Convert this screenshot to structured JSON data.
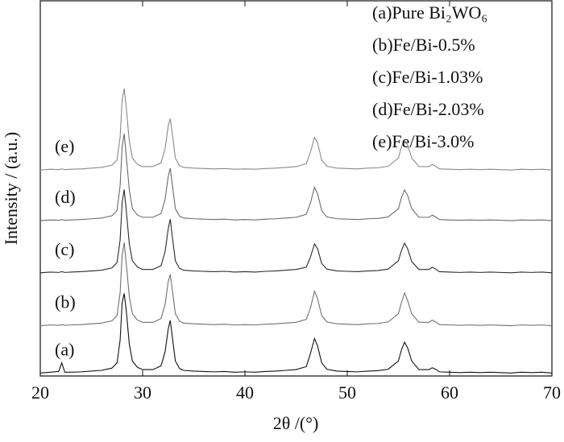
{
  "chart_data": {
    "type": "line",
    "x_label": "2θ /(°)",
    "y_label": "Intensity / (a.u.)",
    "xlim": [
      20,
      70
    ],
    "xticks": [
      20,
      30,
      40,
      50,
      60,
      70
    ],
    "ylim": [
      0,
      100
    ],
    "grid": false,
    "legend": "upper right",
    "x": [
      20,
      21,
      21.8,
      22.1,
      22.4,
      23,
      24,
      25,
      26,
      27,
      27.5,
      27.8,
      28.0,
      28.2,
      28.4,
      28.7,
      29,
      29.5,
      30,
      31,
      31.8,
      32.2,
      32.5,
      32.7,
      32.9,
      33.2,
      33.6,
      34,
      35,
      36,
      37,
      38,
      39,
      40,
      41,
      42,
      43,
      44,
      45,
      46,
      46.4,
      46.8,
      47.1,
      47.5,
      48,
      49,
      50,
      51,
      52,
      53,
      54,
      55,
      55.3,
      55.6,
      55.9,
      56.3,
      57,
      58,
      58.3,
      58.7,
      59,
      60,
      61,
      62,
      63,
      64,
      65,
      66,
      67,
      68,
      69,
      70
    ],
    "series": [
      {
        "name": "(a)Pure Bi₂WO₆",
        "label": "(a)",
        "color": "#111111",
        "values": [
          0.8,
          1.0,
          1.2,
          3.5,
          1.0,
          1.0,
          1.1,
          1.3,
          1.5,
          2.1,
          3.5,
          9.5,
          19.5,
          22,
          17.5,
          8.5,
          4,
          2.3,
          1.7,
          1.7,
          2.7,
          6.5,
          12.5,
          14.8,
          10.5,
          4,
          2,
          1.5,
          1.3,
          1.2,
          1.1,
          1.2,
          1,
          1.1,
          1,
          1.2,
          1.3,
          1.5,
          1.7,
          2.5,
          6,
          10,
          8,
          3.5,
          1.8,
          1.3,
          1.2,
          1.1,
          1.3,
          1.4,
          1.8,
          4,
          7,
          9,
          7.5,
          4,
          1.7,
          1.7,
          2.2,
          1.7,
          1.1,
          1,
          0.9,
          1,
          0.9,
          1,
          0.9,
          0.8,
          1,
          0.9,
          1,
          0.8
        ]
      },
      {
        "name": "(b)Fe/Bi-0.5%",
        "label": "(b)",
        "color": "#707070",
        "values": [
          13.4,
          13.6,
          13.5,
          13.7,
          13.5,
          13.6,
          13.7,
          13.9,
          14.1,
          14.7,
          16.1,
          22.1,
          32.1,
          35.6,
          30.1,
          21.1,
          16.6,
          14.9,
          14.3,
          14.3,
          15.3,
          19.1,
          25.1,
          27.1,
          23.1,
          16.6,
          14.6,
          14.1,
          13.9,
          13.8,
          13.7,
          13.8,
          13.6,
          13.7,
          13.6,
          13.8,
          13.9,
          14.1,
          14.3,
          15.1,
          18.1,
          22.6,
          20.6,
          16.1,
          14.4,
          13.9,
          13.8,
          13.7,
          13.9,
          14.0,
          14.4,
          16.6,
          19.6,
          22.1,
          20.1,
          16.6,
          14.3,
          14.3,
          14.9,
          14.3,
          13.7,
          13.6,
          13.5,
          13.6,
          13.5,
          13.6,
          13.5,
          13.4,
          13.6,
          13.5,
          13.6,
          13.4
        ]
      },
      {
        "name": "(c)Fe/Bi-1.03%",
        "label": "(c)",
        "color": "#2a2a2a",
        "values": [
          27.5,
          27.7,
          27.6,
          27.8,
          27.6,
          27.7,
          27.8,
          28.0,
          28.2,
          28.8,
          30.2,
          36.2,
          46.2,
          49.7,
          44.2,
          35.2,
          30.7,
          29.0,
          28.4,
          28.4,
          29.4,
          33.2,
          39.2,
          41.8,
          37.2,
          30.7,
          28.7,
          28.2,
          28.0,
          27.9,
          27.8,
          27.9,
          27.7,
          27.8,
          27.7,
          27.9,
          28.0,
          28.2,
          28.4,
          29.0,
          31.7,
          35.2,
          33.9,
          30.0,
          28.5,
          28.0,
          27.9,
          27.8,
          28.0,
          28.1,
          28.5,
          30.7,
          33.5,
          35.4,
          33.9,
          30.5,
          28.4,
          28.4,
          29.0,
          28.4,
          27.8,
          27.7,
          27.6,
          27.7,
          27.6,
          27.7,
          27.6,
          27.5,
          27.7,
          27.6,
          27.7,
          27.5
        ]
      },
      {
        "name": "(d)Fe/Bi-2.03%",
        "label": "(d)",
        "color": "#6a6a6a",
        "values": [
          41.4,
          41.6,
          41.5,
          41.7,
          41.5,
          41.6,
          41.7,
          41.9,
          42.1,
          42.7,
          44.1,
          50.6,
          61.1,
          64.6,
          58.6,
          49.6,
          44.6,
          42.9,
          42.3,
          42.3,
          43.3,
          47.1,
          53.1,
          55.4,
          51.1,
          44.6,
          42.6,
          42.1,
          41.9,
          41.8,
          41.7,
          41.8,
          41.6,
          41.7,
          41.6,
          41.8,
          41.9,
          42.1,
          42.3,
          43.1,
          46.1,
          50.3,
          48.6,
          44.1,
          42.4,
          41.9,
          41.8,
          41.7,
          41.9,
          42.0,
          42.4,
          44.6,
          47.6,
          49.6,
          48.1,
          44.6,
          42.3,
          42.3,
          42.9,
          42.3,
          41.7,
          41.6,
          41.5,
          41.6,
          41.5,
          41.6,
          41.5,
          41.4,
          41.6,
          41.5,
          41.6,
          41.4
        ]
      },
      {
        "name": "(e)Fe/Bi-3.0%",
        "label": "(e)",
        "color": "#8a8a8a",
        "values": [
          54.9,
          55.1,
          55.0,
          55.2,
          55.0,
          55.1,
          55.2,
          55.4,
          55.6,
          56.2,
          57.6,
          63.6,
          73.6,
          76.6,
          71.6,
          62.6,
          58.1,
          56.4,
          55.8,
          55.8,
          56.8,
          60.6,
          66.6,
          68.6,
          64.6,
          58.1,
          56.1,
          55.6,
          55.4,
          55.3,
          55.2,
          55.3,
          55.1,
          55.2,
          55.1,
          55.3,
          55.4,
          55.6,
          55.8,
          56.6,
          59.6,
          63.6,
          62.1,
          57.6,
          55.9,
          55.4,
          55.3,
          55.2,
          55.4,
          55.5,
          55.9,
          58.1,
          61.1,
          62.8,
          61.6,
          58.1,
          55.8,
          55.8,
          56.4,
          55.8,
          55.2,
          55.1,
          55.0,
          55.1,
          55.0,
          55.1,
          55.0,
          54.9,
          55.1,
          55.0,
          55.1,
          54.9
        ]
      }
    ]
  }
}
